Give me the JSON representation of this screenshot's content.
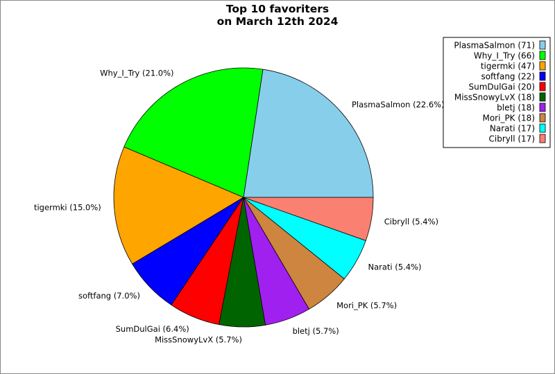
{
  "chart_data": {
    "type": "pie",
    "title": [
      "Top 10 favoriters",
      "on March 12th 2024"
    ],
    "categories": [
      "PlasmaSalmon",
      "Why_I_Try",
      "tigermki",
      "softfang",
      "SumDulGai",
      "MissSnowyLvX",
      "bletj",
      "Mori_PK",
      "Narati",
      "Cibryll"
    ],
    "values": [
      71,
      66,
      47,
      22,
      20,
      18,
      18,
      18,
      17,
      17
    ],
    "colors": [
      "#87ceeb",
      "#00ff00",
      "#ffa500",
      "#0000ff",
      "#ff0000",
      "#006400",
      "#a020f0",
      "#cd853f",
      "#00ffff",
      "#fa8072"
    ],
    "slice_labels": [
      "PlasmaSalmon (22.6%)",
      "Why_I_Try (21.0%)",
      "tigermki (15.0%)",
      "softfang (7.0%)",
      "SumDulGai (6.4%)",
      "MissSnowyLvX (5.7%)",
      "bletj (5.7%)",
      "Mori_PK (5.7%)",
      "Narati (5.4%)",
      "Cibryll (5.4%)"
    ],
    "legend_labels": [
      "PlasmaSalmon (71)",
      "Why_I_Try (66)",
      "tigermki (47)",
      "softfang (22)",
      "SumDulGai (20)",
      "MissSnowyLvX (18)",
      "bletj (18)",
      "Mori_PK (18)",
      "Narati (17)",
      "Cibryll (17)"
    ],
    "legend_position": "top-right",
    "start_angle_deg": 0,
    "direction": "counterclockwise"
  }
}
